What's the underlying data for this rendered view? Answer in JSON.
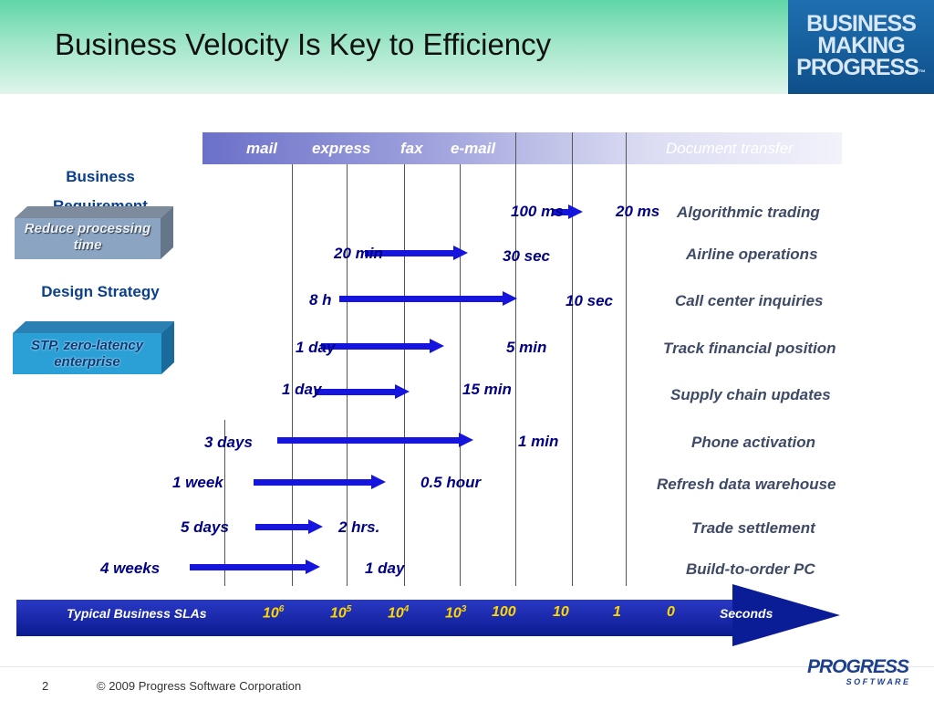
{
  "slide": {
    "title": "Business Velocity Is Key to Efficiency",
    "page_number": "2",
    "copyright": "© 2009 Progress Software Corporation"
  },
  "logo_top": {
    "line1": "BUSINESS",
    "line2": "MAKING",
    "line3": "PROGRESS",
    "tm": "™"
  },
  "logo_bottom": {
    "name": "PROGRESS",
    "sub": "S O F T W A R E"
  },
  "transfer_bar": {
    "labels": [
      "mail",
      "express",
      "fax",
      "e-mail"
    ],
    "right_label": "Document transfer"
  },
  "left_panel": {
    "business_requirement": "Business Requirement",
    "requirement_box": "Reduce processing time",
    "design_strategy": "Design Strategy",
    "strategy_box": "STP, zero-latency enterprise"
  },
  "rows": [
    {
      "from": "100 ms",
      "to": "20 ms",
      "application": "Algorithmic trading"
    },
    {
      "from": "20 min",
      "to": "30 sec",
      "application": "Airline operations"
    },
    {
      "from": "8 h",
      "to": "10 sec",
      "application": "Call center inquiries"
    },
    {
      "from": "1 day",
      "to": "5 min",
      "application": "Track financial position"
    },
    {
      "from": "1 day",
      "to": "15 min",
      "application": "Supply chain updates"
    },
    {
      "from": "3 days",
      "to": "1 min",
      "application": "Phone activation"
    },
    {
      "from": "1 week",
      "to": "0.5 hour",
      "application": "Refresh data warehouse"
    },
    {
      "from": "5 days",
      "to": "2 hrs.",
      "application": "Trade settlement"
    },
    {
      "from": "4 weeks",
      "to": "1 day",
      "application": "Build-to-order PC"
    }
  ],
  "sla_axis": {
    "label": "Typical Business SLAs",
    "ticks": [
      {
        "base": "10",
        "exp": "6"
      },
      {
        "base": "10",
        "exp": "5"
      },
      {
        "base": "10",
        "exp": "4"
      },
      {
        "base": "10",
        "exp": "3"
      },
      {
        "base": "100",
        "exp": ""
      },
      {
        "base": "10",
        "exp": ""
      },
      {
        "base": "1",
        "exp": ""
      },
      {
        "base": "0",
        "exp": ""
      }
    ],
    "unit": "Seconds"
  },
  "colors": {
    "arrow": "#1515dd",
    "label_blue": "#000085",
    "sla_band": "#0a1a90",
    "sla_ticks": "#ffd700"
  }
}
